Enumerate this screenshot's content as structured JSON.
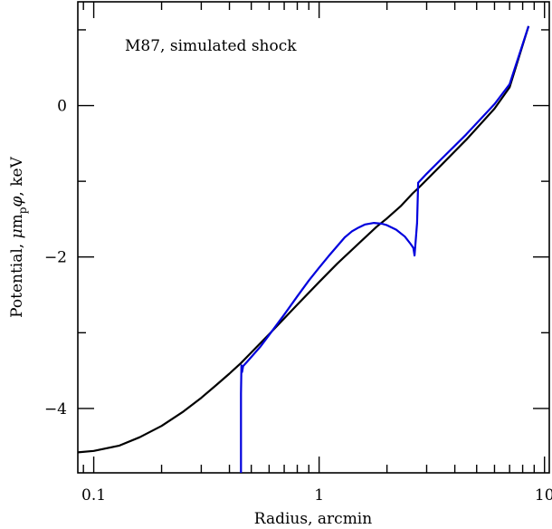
{
  "chart_data": {
    "type": "line",
    "title": "",
    "annotation": "M87, simulated shock",
    "xlabel": "Radius, arcmin",
    "ylabel_parts": [
      "Potential, ",
      "μ",
      "m",
      "p",
      "φ",
      ", keV"
    ],
    "xscale": "log",
    "xlim": [
      0.085,
      10.5
    ],
    "ylim": [
      -4.85,
      1.37
    ],
    "x_ticks": [
      0.1,
      1,
      10
    ],
    "x_tick_labels": [
      "0.1",
      "1",
      "10"
    ],
    "y_ticks": [
      0,
      -2,
      -4
    ],
    "y_tick_labels": [
      "0",
      "−2",
      "−4"
    ],
    "grid": false,
    "legend": "none",
    "series": [
      {
        "color": "#000000",
        "x": [
          0.085,
          0.1,
          0.13,
          0.16,
          0.2,
          0.25,
          0.3,
          0.35,
          0.4,
          0.45,
          0.5,
          0.6,
          0.7,
          0.8,
          1.0,
          1.2,
          1.5,
          1.8,
          2.0,
          2.3,
          2.6,
          2.8,
          3.5,
          4.5,
          6.0,
          7.0,
          8.5
        ],
        "y": [
          -4.58,
          -4.56,
          -4.49,
          -4.38,
          -4.23,
          -4.04,
          -3.86,
          -3.69,
          -3.54,
          -3.4,
          -3.26,
          -3.02,
          -2.81,
          -2.63,
          -2.33,
          -2.09,
          -1.82,
          -1.6,
          -1.49,
          -1.33,
          -1.16,
          -1.07,
          -0.78,
          -0.45,
          -0.04,
          0.24,
          1.05
        ]
      },
      {
        "color": "#0000dd",
        "x": [
          0.45,
          0.45,
          0.452,
          0.455,
          0.46,
          0.48,
          0.5,
          0.55,
          0.6,
          0.7,
          0.8,
          0.9,
          1.0,
          1.1,
          1.2,
          1.3,
          1.4,
          1.5,
          1.6,
          1.75,
          1.9,
          2.0,
          2.2,
          2.4,
          2.55,
          2.62,
          2.65,
          2.72,
          2.75,
          3.0,
          3.5,
          4.5,
          6.0,
          7.0,
          8.5
        ],
        "y": [
          -4.85,
          -3.8,
          -3.43,
          -3.52,
          -3.44,
          -3.38,
          -3.32,
          -3.18,
          -3.03,
          -2.76,
          -2.52,
          -2.31,
          -2.14,
          -1.99,
          -1.86,
          -1.74,
          -1.66,
          -1.61,
          -1.57,
          -1.55,
          -1.56,
          -1.58,
          -1.64,
          -1.73,
          -1.83,
          -1.88,
          -1.98,
          -1.55,
          -1.02,
          -0.9,
          -0.7,
          -0.38,
          0.02,
          0.28,
          1.05
        ]
      }
    ]
  }
}
